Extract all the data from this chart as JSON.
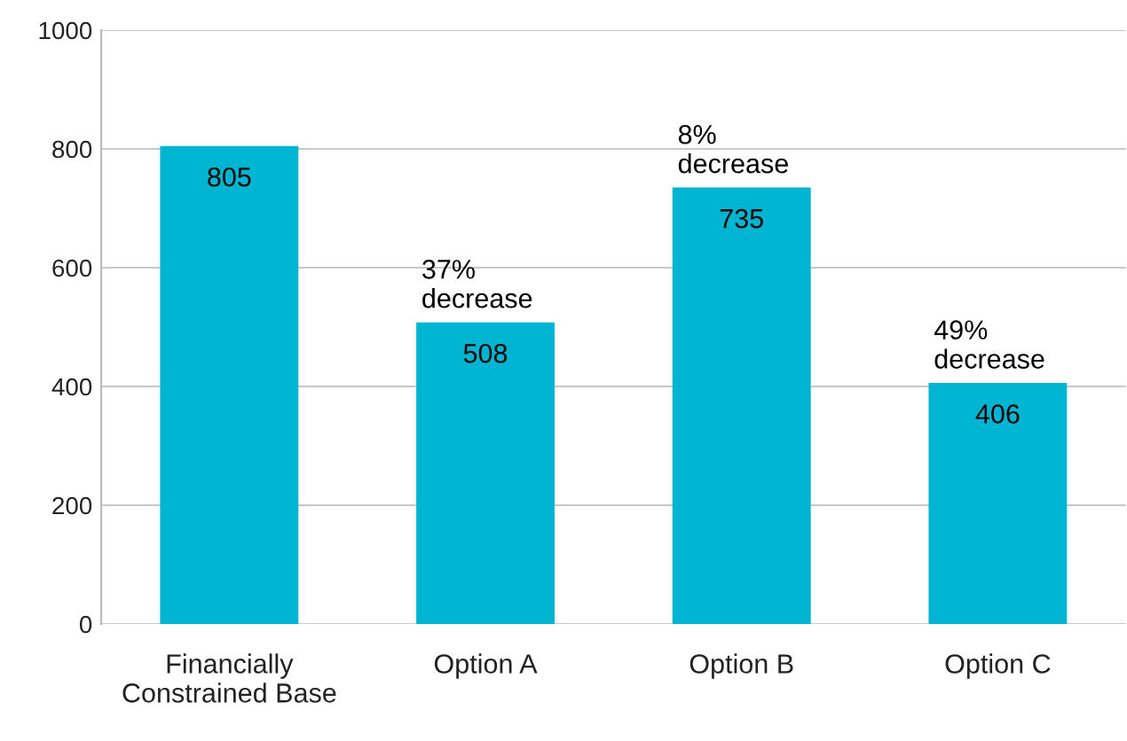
{
  "chart_data": {
    "type": "bar",
    "categories": [
      "Financially\nConstrained Base",
      "Option A",
      "Option B",
      "Option C"
    ],
    "values": [
      805,
      508,
      735,
      406
    ],
    "color": "#00b5d1",
    "ylim": [
      0,
      1000
    ],
    "yticks": [
      0,
      200,
      400,
      600,
      800,
      1000
    ],
    "grid": "y",
    "data_labels": true,
    "legend": false,
    "annotations": [
      {
        "text": "37%\ndecrease",
        "x": "Option A",
        "y": 508
      },
      {
        "text": "8%\ndecrease",
        "x": "Option B",
        "y": 735
      },
      {
        "text": "49%\ndecrease",
        "x": "Option C",
        "y": 406
      }
    ]
  }
}
